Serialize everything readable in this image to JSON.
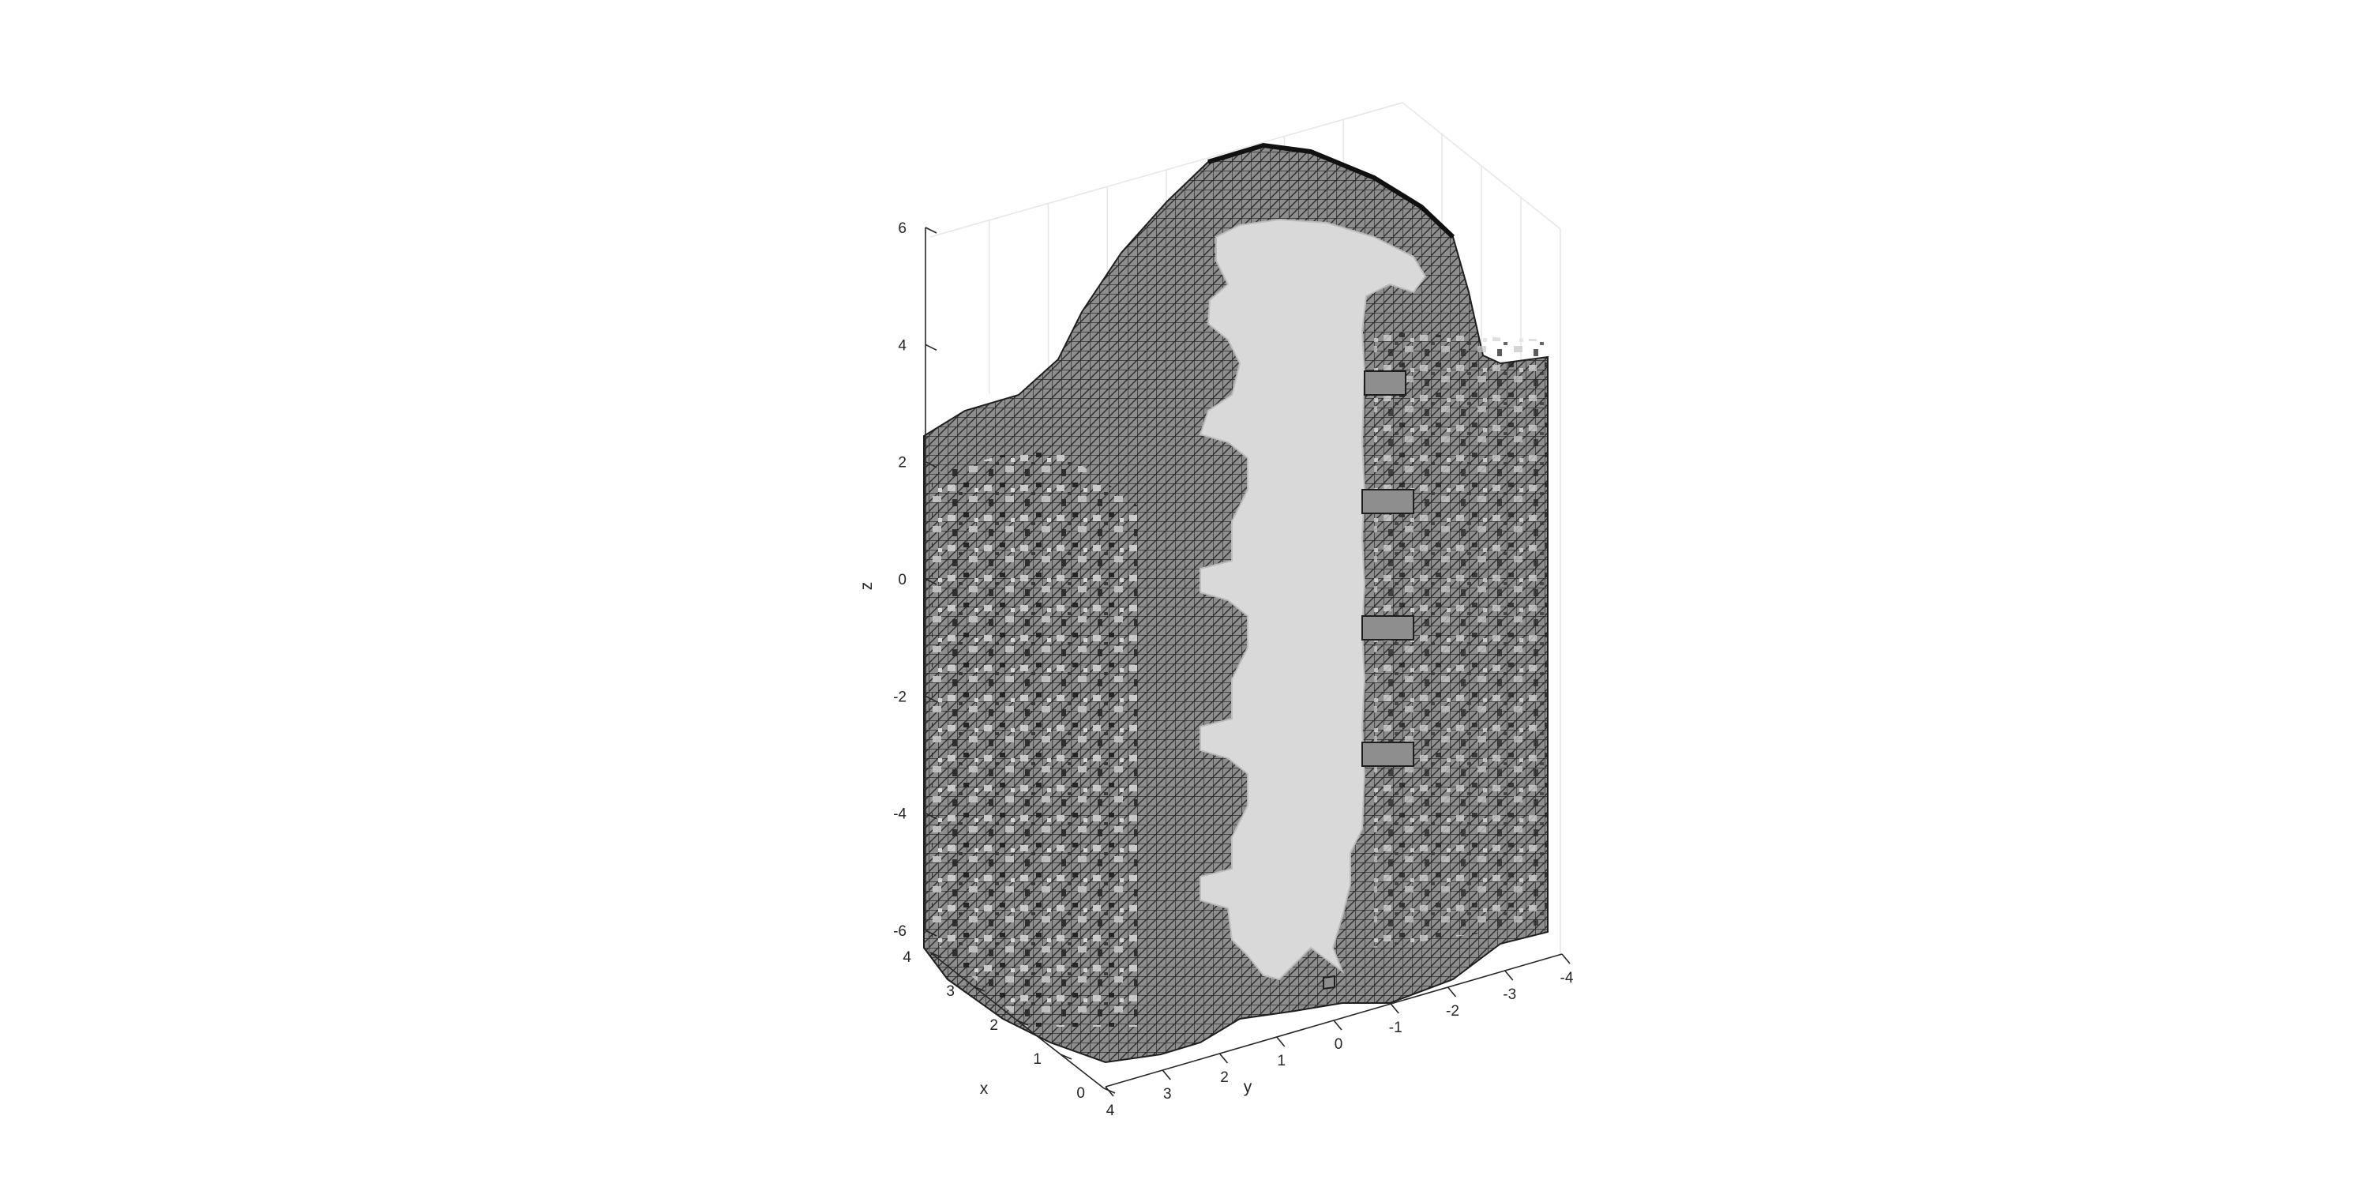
{
  "chart_data": {
    "type": "other",
    "title": "",
    "xlabel": "x",
    "ylabel": "y",
    "zlabel": "z",
    "x_ticks": [
      "0",
      "1",
      "2",
      "3",
      "4"
    ],
    "y_ticks": [
      "4",
      "3",
      "2",
      "1",
      "0",
      "-1",
      "-2",
      "-3",
      "-4"
    ],
    "z_ticks": [
      "-6",
      "-4",
      "-2",
      "0",
      "2",
      "4",
      "6"
    ],
    "xlim": [
      0,
      4
    ],
    "ylim": [
      -4,
      4
    ],
    "zlim": [
      -6,
      6
    ],
    "grid": true,
    "colors": {
      "voxel_face": "#8c8c8c",
      "voxel_edge": "#1e1e1e",
      "cut_face": "#d9d9d9",
      "grid": "#e6e6e6",
      "axis": "#262626"
    }
  }
}
